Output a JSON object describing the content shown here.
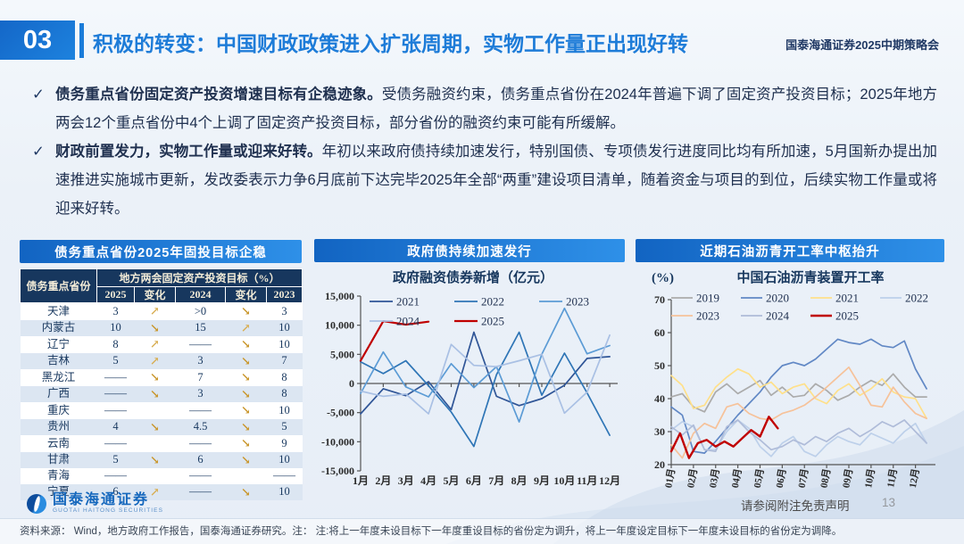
{
  "header": {
    "number": "03",
    "title": "积极的转变：中国财政政策进入扩张周期，实物工作量正出现好转",
    "event": "国泰海通证券2025中期策略会"
  },
  "icons": {
    "check": "✓",
    "arrow_up": "↗",
    "arrow_down": "↘"
  },
  "colors": {
    "accent_blue": "#1e7cd8",
    "band_blue": "#1264c2",
    "table_header_navy": "#17375e",
    "row_stripe": "#dce6f2",
    "gold_arrow": "#c9962b",
    "accent_red": "#c00000"
  },
  "bullets": [
    {
      "lead": "债务重点省份固定资产投资增速目标有企稳迹象。",
      "rest": "受债务融资约束，债务重点省份在2024年普遍下调了固定资产投资目标；2025年地方两会12个重点省份中4个上调了固定资产投资目标，部分省份的融资约束可能有所缓解。"
    },
    {
      "lead": "财政前置发力，实物工作量或迎来好转。",
      "rest": "年初以来政府债持续加速发行，特别国债、专项债发行进度同比均有所加速，5月国新办提出加速推进实施城市更新，发改委表示力争6月底前下达完毕2025年全部“两重”建设项目清单，随着资金与项目的到位，后续实物工作量或将迎来好转。"
    }
  ],
  "table_panel": {
    "band_title": "债务重点省份2025年固投目标企稳",
    "col_province": "债务重点省份",
    "group_header": "地方两会固定资产投资目标（%）",
    "columns": [
      "2025",
      "变化",
      "2024",
      "变化",
      "2023"
    ],
    "rows": [
      {
        "province": "天津",
        "y2025": "3",
        "chg1": "up",
        "y2024": ">0",
        "chg2": "down",
        "y2023": "3"
      },
      {
        "province": "内蒙古",
        "y2025": "10",
        "chg1": "down",
        "y2024": "15",
        "chg2": "up",
        "y2023": "10"
      },
      {
        "province": "辽宁",
        "y2025": "8",
        "chg1": "up",
        "y2024": "——",
        "chg2": "down",
        "y2023": "10"
      },
      {
        "province": "吉林",
        "y2025": "5",
        "chg1": "up",
        "y2024": "3",
        "chg2": "down",
        "y2023": "7"
      },
      {
        "province": "黑龙江",
        "y2025": "——",
        "chg1": "down",
        "y2024": "7",
        "chg2": "down",
        "y2023": "8"
      },
      {
        "province": "广西",
        "y2025": "——",
        "chg1": "down",
        "y2024": "3",
        "chg2": "down",
        "y2023": "8"
      },
      {
        "province": "重庆",
        "y2025": "——",
        "chg1": "",
        "y2024": "——",
        "chg2": "down",
        "y2023": "10"
      },
      {
        "province": "贵州",
        "y2025": "4",
        "chg1": "down",
        "y2024": "4.5",
        "chg2": "down",
        "y2023": "5"
      },
      {
        "province": "云南",
        "y2025": "——",
        "chg1": "",
        "y2024": "——",
        "chg2": "down",
        "y2023": "9"
      },
      {
        "province": "甘肃",
        "y2025": "5",
        "chg1": "down",
        "y2024": "6",
        "chg2": "down",
        "y2023": "10"
      },
      {
        "province": "青海",
        "y2025": "——",
        "chg1": "",
        "y2024": "——",
        "chg2": "",
        "y2023": "——"
      },
      {
        "province": "宁夏",
        "y2025": "6",
        "chg1": "up",
        "y2024": "——",
        "chg2": "down",
        "y2023": "10"
      }
    ]
  },
  "chart_data": [
    {
      "type": "line",
      "panel_title": "政府债持续加速发行",
      "title": "政府融资债券新增（亿元）",
      "x_labels": [
        "1月",
        "2月",
        "3月",
        "4月",
        "5月",
        "6月",
        "7月",
        "8月",
        "9月",
        "10月",
        "11月",
        "12月"
      ],
      "ylim": [
        -15000,
        15000
      ],
      "baseline": 0,
      "grid": false,
      "legend_position": "top-inside",
      "yticks": [
        {
          "v": 15000,
          "label": "15,000"
        },
        {
          "v": 10000,
          "label": "10,000"
        },
        {
          "v": 5000,
          "label": "5,000"
        },
        {
          "v": 0,
          "label": "0"
        },
        {
          "v": -5000,
          "label": "-5,000"
        },
        {
          "v": -10000,
          "label": "-10,000"
        },
        {
          "v": -15000,
          "label": "-15,000"
        }
      ],
      "series": [
        {
          "name": "2021",
          "color": "#2F5597",
          "values": [
            -5200,
            -900,
            -2100,
            300,
            -4500,
            8800,
            -2200,
            -3800,
            -2600,
            -300,
            4300,
            4600
          ]
        },
        {
          "name": "2022",
          "color": "#2E75B6",
          "values": [
            3700,
            1700,
            3900,
            -400,
            -4900,
            -10800,
            1500,
            8800,
            -2000,
            5200,
            -1600,
            -8900
          ]
        },
        {
          "name": "2023",
          "color": "#5B9BD5",
          "values": [
            -1700,
            5400,
            -600,
            -2300,
            3400,
            -700,
            2900,
            -6600,
            5000,
            12900,
            5100,
            6500
          ]
        },
        {
          "name": "2024",
          "color": "#A9C0E4",
          "values": [
            -1300,
            -2200,
            -1800,
            -5200,
            6700,
            3100,
            2900,
            3900,
            5000,
            -5100,
            -1500,
            8300
          ]
        },
        {
          "name": "2025",
          "color": "#C00000",
          "width": 2.2,
          "values": [
            3900,
            10700,
            10100,
            10600
          ]
        }
      ]
    },
    {
      "type": "line",
      "panel_title": "近期石油沥青开工率中枢抬升",
      "title": "中国石油沥青装置开工率",
      "ylabel": "(%)",
      "x_labels": [
        "01月",
        "02月",
        "03月",
        "04月",
        "05月",
        "06月",
        "07月",
        "08月",
        "09月",
        "10月",
        "11月",
        "12月"
      ],
      "ylim": [
        20,
        70
      ],
      "baseline": 20,
      "grid": false,
      "legend_position": "top-inside",
      "yticks": [
        {
          "v": 70,
          "label": "70"
        },
        {
          "v": 60,
          "label": "60"
        },
        {
          "v": 50,
          "label": "50"
        },
        {
          "v": 40,
          "label": "40"
        },
        {
          "v": 30,
          "label": "30"
        },
        {
          "v": 20,
          "label": "20"
        }
      ],
      "series": [
        {
          "name": "2019",
          "color": "#ABABAB",
          "x_step": 0.5,
          "values": [
            40.5,
            41.5,
            37.5,
            36,
            42,
            44.5,
            41.5,
            43.5,
            45.5,
            41,
            43.5,
            40.5,
            41,
            44.5,
            42.5,
            39.5,
            41,
            43.5,
            45.5,
            44,
            47.5,
            43.5,
            40.5,
            40.5
          ]
        },
        {
          "name": "2020",
          "color": "#6188C5",
          "x_step": 0.5,
          "values": [
            37.5,
            35,
            24,
            23.5,
            27,
            31,
            35,
            38.5,
            42,
            46.5,
            50,
            51,
            50,
            52,
            55,
            58,
            57,
            56.5,
            58,
            56,
            55.5,
            57.5,
            49,
            43
          ]
        },
        {
          "name": "2021",
          "color": "#FFE08A",
          "x_step": 0.5,
          "values": [
            47,
            44,
            37,
            38,
            43.5,
            46.5,
            49,
            47.5,
            43.5,
            45,
            41.5,
            43.5,
            44.5,
            40,
            38.5,
            42.5,
            44.5,
            41,
            43,
            46,
            42,
            40.5,
            40,
            34
          ]
        },
        {
          "name": "2022",
          "color": "#BDD0EA",
          "x_step": 0.5,
          "values": [
            30.5,
            33,
            31.5,
            24.5,
            24.5,
            30,
            33.5,
            31,
            25.5,
            22.5,
            26.5,
            28.5,
            24,
            22.5,
            26,
            28.5,
            27,
            26,
            29.5,
            28,
            26.5,
            30,
            32.5,
            26.5
          ]
        },
        {
          "name": "2023",
          "color": "#F6C29A",
          "x_step": 0.5,
          "values": [
            26,
            22,
            29.5,
            32.5,
            31,
            37.5,
            38.5,
            35.5,
            34,
            33.5,
            35.5,
            36.5,
            38,
            40.5,
            43.5,
            46.5,
            49.5,
            44,
            38,
            37.5,
            43.5,
            39,
            35.5,
            34
          ]
        },
        {
          "name": "2024",
          "color": "#AFBCD9",
          "x_step": 0.5,
          "values": [
            31.5,
            29,
            32,
            24.5,
            24,
            31.5,
            33.5,
            30,
            27.5,
            24.5,
            25.5,
            27.5,
            26,
            28.5,
            27,
            29.5,
            31,
            28.5,
            30.5,
            33,
            31.5,
            33.5,
            30,
            26.5
          ]
        },
        {
          "name": "2025",
          "color": "#C00000",
          "width": 2.4,
          "x_step": 0.4,
          "values": [
            24,
            29.5,
            22,
            26.5,
            27.5,
            25.5,
            27,
            25.5,
            28,
            30.5,
            28.5,
            34.5,
            31
          ]
        }
      ]
    }
  ],
  "footer": {
    "logo_cn": "国泰海通证券",
    "logo_en": "GUOTAI HAITONG SECURITIES",
    "disclaimer": "请参阅附注免责声明",
    "page": "13",
    "source": "资料来源： Wind，地方政府工作报告，国泰海通证券研究。注： 注:将上一年度未设目标下一年度重设目标的省份定为调升，将上一年度设定目标下一年度未设目标的省份定为调降。"
  }
}
